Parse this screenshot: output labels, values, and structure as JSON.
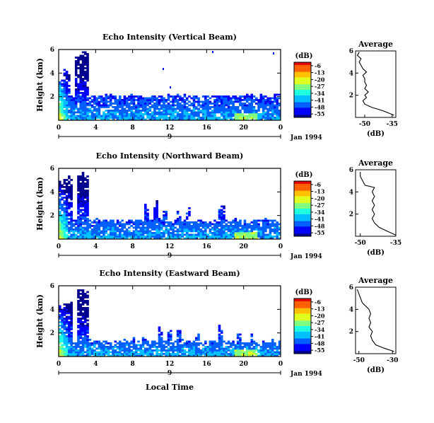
{
  "chart_data": [
    {
      "type": "heatmap",
      "title": "Echo Intensity (Vertical Beam)",
      "ylabel": "Height (km)",
      "x_ticks": [
        "0",
        "4",
        "8",
        "12",
        "16",
        "20",
        "0"
      ],
      "y_ticks": [
        "2",
        "4",
        "6"
      ],
      "xlim": [
        0,
        24
      ],
      "ylim": [
        0,
        6
      ],
      "date_label": "9",
      "date_right_label": "Jan 1994",
      "colorbar": {
        "unit": "(dB)",
        "ticks": [
          "-6",
          "-13",
          "-20",
          "-27",
          "-34",
          "-41",
          "-48",
          "-55"
        ],
        "range": [
          -55,
          -6
        ]
      },
      "profile": {
        "title": "Average",
        "xlabel": "(dB)",
        "x_ticks": [
          "-50",
          "-35"
        ],
        "y_ticks": [
          "2",
          "4",
          "6"
        ],
        "xlim": [
          -55,
          -33
        ],
        "ylim": [
          0,
          6
        ],
        "values": [
          [
            -34,
            0.2
          ],
          [
            -40,
            0.6
          ],
          [
            -46,
            0.9
          ],
          [
            -50,
            1.2
          ],
          [
            -51,
            1.5
          ],
          [
            -49,
            1.8
          ],
          [
            -50,
            2.0
          ],
          [
            -48,
            2.3
          ],
          [
            -50,
            2.6
          ],
          [
            -49,
            2.9
          ],
          [
            -50,
            3.2
          ],
          [
            -50,
            3.5
          ],
          [
            -51,
            3.8
          ],
          [
            -49,
            4.1
          ],
          [
            -51,
            4.4
          ],
          [
            -52,
            4.7
          ],
          [
            -53,
            5.0
          ],
          [
            -52,
            5.3
          ],
          [
            -54,
            5.6
          ],
          [
            -53,
            5.9
          ]
        ]
      }
    },
    {
      "type": "heatmap",
      "title": "Echo Intensity (Northward Beam)",
      "ylabel": "Height (km)",
      "x_ticks": [
        "0",
        "4",
        "8",
        "12",
        "16",
        "20",
        "0"
      ],
      "y_ticks": [
        "2",
        "4",
        "6"
      ],
      "xlim": [
        0,
        24
      ],
      "ylim": [
        0,
        6
      ],
      "date_label": "9",
      "date_right_label": "Jan 1994",
      "colorbar": {
        "unit": "(dB)",
        "ticks": [
          "-6",
          "-13",
          "-20",
          "-27",
          "-34",
          "-41",
          "-48",
          "-55"
        ],
        "range": [
          -55,
          -6
        ]
      },
      "profile": {
        "title": "Average",
        "xlabel": "(dB)",
        "x_ticks": [
          "-50",
          "-35"
        ],
        "y_ticks": [
          "2",
          "4",
          "6"
        ],
        "xlim": [
          -52,
          -35
        ],
        "ylim": [
          0,
          6
        ],
        "values": [
          [
            -35,
            0.1
          ],
          [
            -39,
            0.5
          ],
          [
            -42,
            0.8
          ],
          [
            -44,
            1.2
          ],
          [
            -45,
            1.6
          ],
          [
            -44,
            2.0
          ],
          [
            -45,
            2.4
          ],
          [
            -44,
            2.8
          ],
          [
            -45,
            3.2
          ],
          [
            -44,
            3.6
          ],
          [
            -45,
            4.0
          ],
          [
            -44,
            4.4
          ],
          [
            -48,
            4.6
          ],
          [
            -49,
            5.0
          ],
          [
            -50,
            5.4
          ],
          [
            -50,
            5.8
          ]
        ]
      }
    },
    {
      "type": "heatmap",
      "title": "Echo Intensity (Eastward Beam)",
      "ylabel": "Height (km)",
      "x_ticks": [
        "0",
        "4",
        "8",
        "12",
        "16",
        "20",
        "0"
      ],
      "y_ticks": [
        "2",
        "4",
        "6"
      ],
      "xlim": [
        0,
        24
      ],
      "ylim": [
        0,
        6
      ],
      "date_label": "9",
      "date_right_label": "Jan 1994",
      "xlabel": "Local Time",
      "colorbar": {
        "unit": "(dB)",
        "ticks": [
          "-6",
          "-13",
          "-20",
          "-27",
          "-34",
          "-41",
          "-48",
          "-55"
        ],
        "range": [
          -55,
          -6
        ]
      },
      "profile": {
        "title": "Average",
        "xlabel": "(dB)",
        "x_ticks": [
          "-50",
          "-30"
        ],
        "y_ticks": [
          "2",
          "4",
          "6"
        ],
        "xlim": [
          -52,
          -28
        ],
        "ylim": [
          0,
          6
        ],
        "values": [
          [
            -29,
            0.2
          ],
          [
            -35,
            0.5
          ],
          [
            -40,
            0.8
          ],
          [
            -42,
            1.2
          ],
          [
            -43,
            1.6
          ],
          [
            -42,
            2.0
          ],
          [
            -44,
            2.4
          ],
          [
            -43,
            2.8
          ],
          [
            -44,
            3.2
          ],
          [
            -43,
            3.6
          ],
          [
            -44,
            4.0
          ],
          [
            -46,
            4.3
          ],
          [
            -48,
            4.6
          ],
          [
            -49,
            5.0
          ],
          [
            -50,
            5.4
          ],
          [
            -51,
            5.8
          ]
        ]
      }
    }
  ]
}
